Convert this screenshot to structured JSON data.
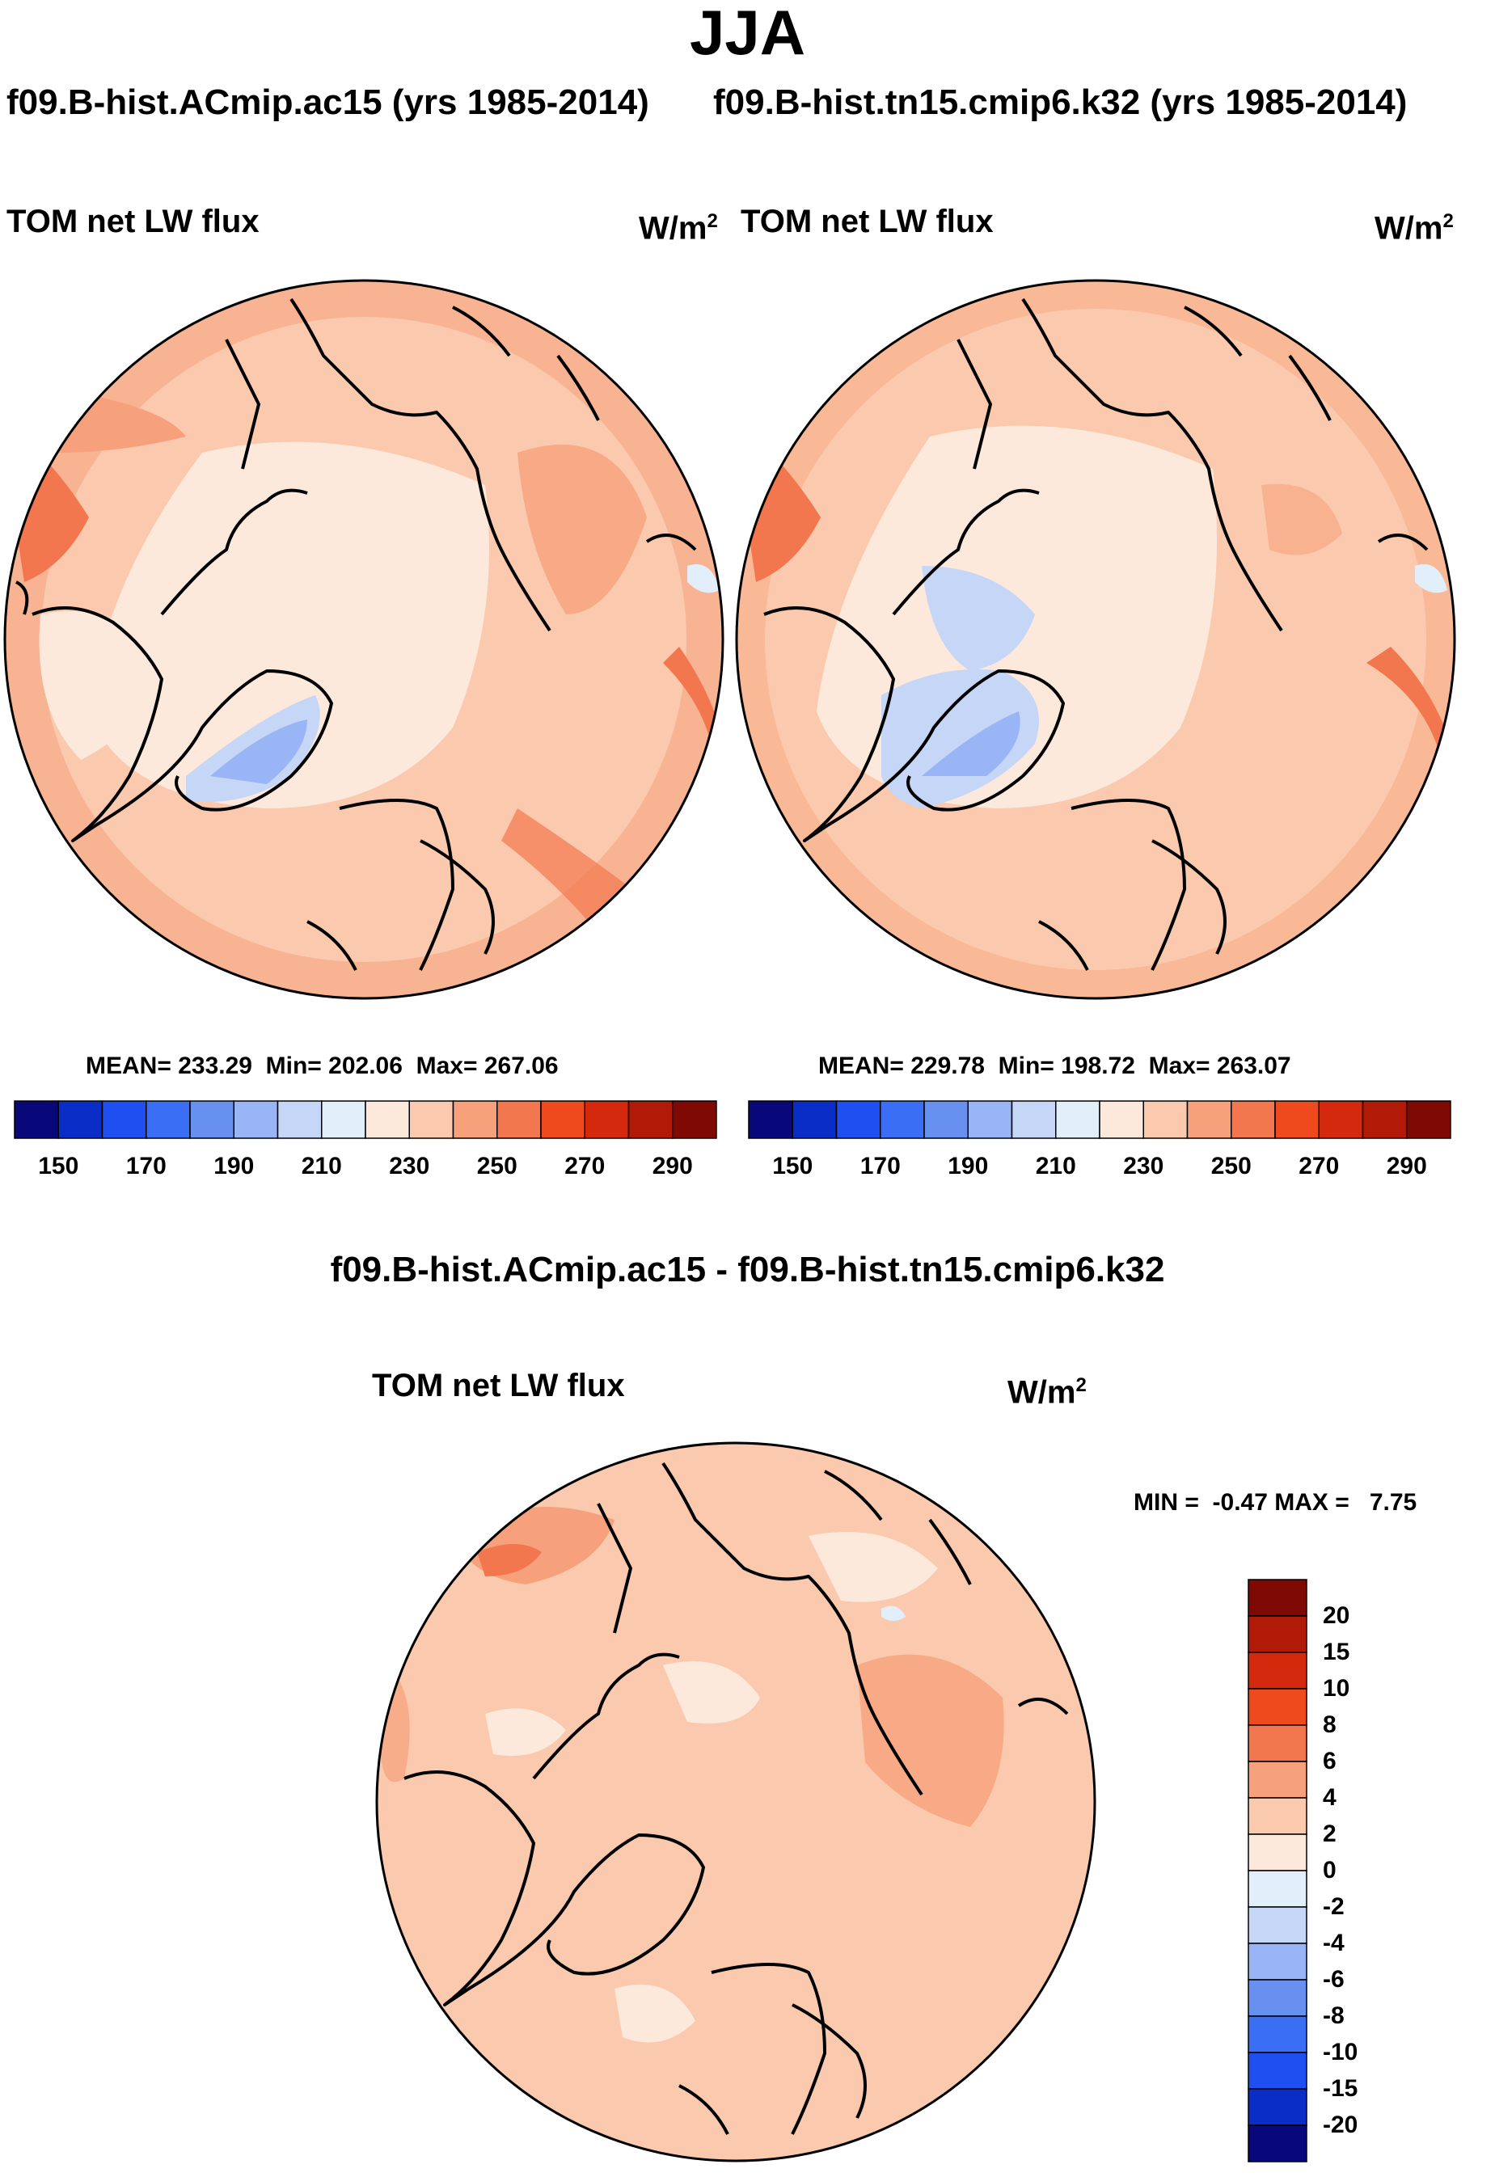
{
  "title": "JJA",
  "panels": [
    {
      "case_title": "f09.B-hist.ACmip.ac15 (yrs 1985-2014)",
      "left_label": "TOM net LW flux",
      "units_main": "W/m",
      "units_sup": "2",
      "stats": {
        "mean_label": "MEAN=",
        "mean": "233.29",
        "min_label": "Min=",
        "min": "202.06",
        "max_label": "Max=",
        "max": "267.06"
      }
    },
    {
      "case_title": "f09.B-hist.tn15.cmip6.k32 (yrs 1985-2014)",
      "left_label": "TOM net LW flux",
      "units_main": "W/m",
      "units_sup": "2",
      "stats": {
        "mean_label": "MEAN=",
        "mean": "229.78",
        "min_label": "Min=",
        "min": "198.72",
        "max_label": "Max=",
        "max": "263.07"
      }
    }
  ],
  "abs_colorbar": {
    "colors": [
      "#08087a",
      "#0a2dc8",
      "#1f4ff0",
      "#3a6ef5",
      "#6790f0",
      "#9ab5f5",
      "#c6d6f7",
      "#e3eefb",
      "#fde9dc",
      "#fbcaae",
      "#f6a17b",
      "#f2774f",
      "#ee4a1e",
      "#d5290d",
      "#b11a07",
      "#7e0a03"
    ],
    "ticks": [
      "150",
      "170",
      "190",
      "210",
      "230",
      "250",
      "270",
      "290"
    ]
  },
  "diff": {
    "title": "f09.B-hist.ACmip.ac15 - f09.B-hist.tn15.cmip6.k32",
    "left_label": "TOM net LW flux",
    "units_main": "W/m",
    "units_sup": "2",
    "minmax": {
      "min_label": "MIN =",
      "min": "-0.47",
      "max_label": "MAX =",
      "max": "7.75"
    },
    "colorbar": {
      "colors_top_to_bottom": [
        "#7e0a03",
        "#b11a07",
        "#d5290d",
        "#ee4a1e",
        "#f2774f",
        "#f6a17b",
        "#fbcaae",
        "#fde9dc",
        "#e3eefb",
        "#c6d6f7",
        "#9ab5f5",
        "#6790f0",
        "#3a6ef5",
        "#1f4ff0",
        "#0a2dc8",
        "#08087a"
      ],
      "labels": [
        "20",
        "15",
        "10",
        "8",
        "6",
        "4",
        "2",
        "0",
        "-2",
        "-4",
        "-6",
        "-8",
        "-10",
        "-15",
        "-20"
      ]
    }
  },
  "chart_data": [
    {
      "type": "heatmap",
      "title": "f09.B-hist.ACmip.ac15 (yrs 1985-2014)",
      "variable": "TOM net LW flux",
      "units": "W/m2",
      "season": "JJA",
      "projection": "north polar stereographic",
      "mean": 233.29,
      "min": 202.06,
      "max": 267.06,
      "levels": [
        150,
        160,
        170,
        180,
        190,
        200,
        210,
        220,
        230,
        240,
        250,
        260,
        270,
        280,
        290
      ]
    },
    {
      "type": "heatmap",
      "title": "f09.B-hist.tn15.cmip6.k32 (yrs 1985-2014)",
      "variable": "TOM net LW flux",
      "units": "W/m2",
      "season": "JJA",
      "projection": "north polar stereographic",
      "mean": 229.78,
      "min": 198.72,
      "max": 263.07,
      "levels": [
        150,
        160,
        170,
        180,
        190,
        200,
        210,
        220,
        230,
        240,
        250,
        260,
        270,
        280,
        290
      ]
    },
    {
      "type": "heatmap",
      "title": "f09.B-hist.ACmip.ac15 - f09.B-hist.tn15.cmip6.k32",
      "variable": "TOM net LW flux",
      "units": "W/m2",
      "season": "JJA",
      "projection": "north polar stereographic",
      "min": -0.47,
      "max": 7.75,
      "levels": [
        -20,
        -15,
        -10,
        -8,
        -6,
        -4,
        -2,
        0,
        2,
        4,
        6,
        8,
        10,
        15,
        20
      ]
    }
  ]
}
